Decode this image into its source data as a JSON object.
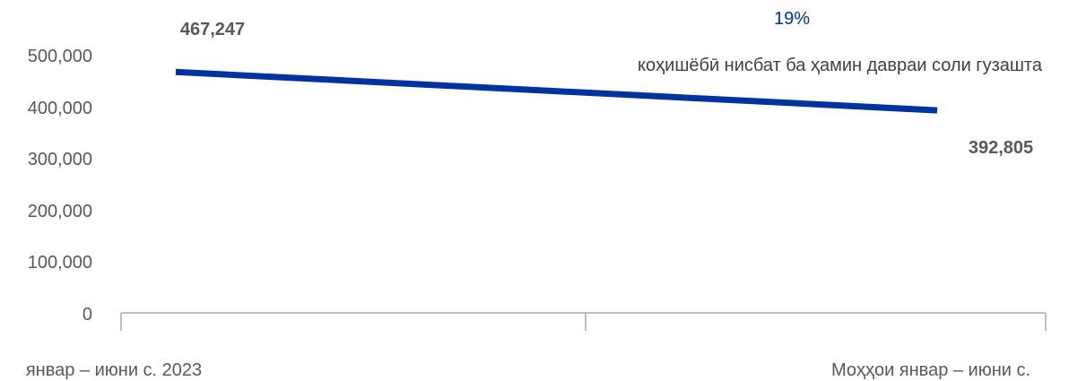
{
  "chart_data": {
    "type": "line",
    "categories": [
      "январ – июни с. 2023",
      "Моҳҳои январ – июни с."
    ],
    "series": [
      {
        "values": [
          467247,
          392805
        ]
      }
    ],
    "data_labels": [
      "467,247",
      "392,805"
    ],
    "y_ticks": [
      "0",
      "100,000",
      "200,000",
      "300,000",
      "400,000",
      "500,000"
    ],
    "ylim": [
      0,
      550000
    ],
    "grid": false,
    "annotation": {
      "percent": "19%",
      "text": "коҳишёбӣ нисбат ба ҳамин давраи соли гузашта"
    },
    "colors": {
      "line": "#0033a0",
      "axis": "#bfbfbf",
      "text": "#595959"
    }
  }
}
